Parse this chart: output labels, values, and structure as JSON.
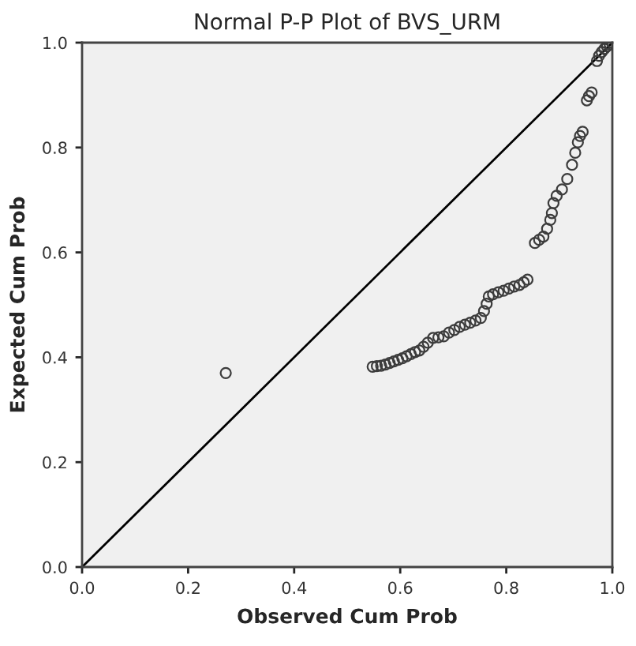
{
  "chart_data": {
    "type": "scatter",
    "title": "Normal P-P Plot of BVS_URM",
    "xlabel": "Observed Cum Prob",
    "ylabel": "Expected Cum Prob",
    "xlim": [
      0,
      1
    ],
    "ylim": [
      0,
      1
    ],
    "xticks": [
      {
        "value": 0,
        "label": "0.0"
      },
      {
        "value": 0.2,
        "label": "0.2"
      },
      {
        "value": 0.4,
        "label": "0.4"
      },
      {
        "value": 0.6,
        "label": "0.6"
      },
      {
        "value": 0.8,
        "label": "0.8"
      },
      {
        "value": 1,
        "label": "1.0"
      }
    ],
    "yticks": [
      {
        "value": 0,
        "label": "0.0"
      },
      {
        "value": 0.2,
        "label": "0.2"
      },
      {
        "value": 0.4,
        "label": "0.4"
      },
      {
        "value": 0.6,
        "label": "0.6"
      },
      {
        "value": 0.8,
        "label": "0.8"
      },
      {
        "value": 1,
        "label": "1.0"
      }
    ],
    "marker": "circle",
    "grid": false,
    "legend": false,
    "series": [
      {
        "type": "line",
        "marker": "none",
        "color": "#000000",
        "x": [
          0,
          1
        ],
        "values": [
          0,
          1
        ]
      },
      {
        "color": "#3c3c3c",
        "x": [
          0.271,
          0.548,
          0.556,
          0.564,
          0.572,
          0.58,
          0.588,
          0.596,
          0.604,
          0.612,
          0.62,
          0.628,
          0.636,
          0.644,
          0.652,
          0.662,
          0.672,
          0.682,
          0.692,
          0.702,
          0.712,
          0.722,
          0.732,
          0.742,
          0.752,
          0.758,
          0.763,
          0.767,
          0.775,
          0.785,
          0.795,
          0.805,
          0.815,
          0.825,
          0.833,
          0.84,
          0.854,
          0.862,
          0.87,
          0.877,
          0.883,
          0.886,
          0.889,
          0.895,
          0.905,
          0.915,
          0.924,
          0.93,
          0.935,
          0.939,
          0.944,
          0.952,
          0.956,
          0.961,
          0.971,
          0.975,
          0.98,
          0.985,
          0.99,
          0.995,
          1.0
        ],
        "values": [
          0.37,
          0.382,
          0.383,
          0.384,
          0.386,
          0.389,
          0.392,
          0.395,
          0.398,
          0.402,
          0.406,
          0.41,
          0.413,
          0.42,
          0.428,
          0.437,
          0.438,
          0.44,
          0.447,
          0.452,
          0.458,
          0.462,
          0.466,
          0.47,
          0.475,
          0.488,
          0.502,
          0.516,
          0.52,
          0.524,
          0.527,
          0.531,
          0.535,
          0.538,
          0.543,
          0.548,
          0.618,
          0.624,
          0.63,
          0.645,
          0.662,
          0.675,
          0.694,
          0.708,
          0.72,
          0.74,
          0.767,
          0.79,
          0.81,
          0.822,
          0.83,
          0.89,
          0.898,
          0.905,
          0.965,
          0.975,
          0.982,
          0.988,
          0.993,
          0.997,
          1.0
        ]
      }
    ]
  }
}
